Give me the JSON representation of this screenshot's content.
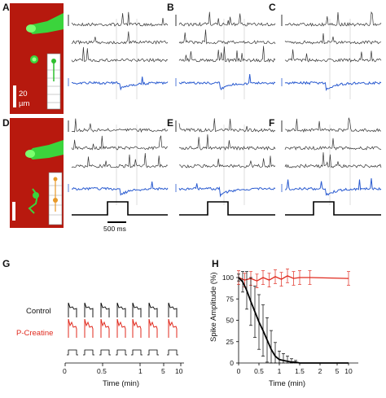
{
  "panels": {
    "A": "A",
    "B": "B",
    "C": "C",
    "D": "D",
    "E": "E",
    "F": "F",
    "G": "G",
    "H": "H"
  },
  "image_scale": {
    "value": "20",
    "unit": "µm"
  },
  "time_scale": {
    "label": "500 ms"
  },
  "colors": {
    "black_trace": "#333333",
    "blue_trace": "#2a5bd0",
    "red_trace": "#e02a1e",
    "micrograph_bg": "#c81e12",
    "cell_fill": "#39d23a"
  },
  "panel_g": {
    "rows": [
      "Control",
      "P-Creatine"
    ],
    "xlabel": "Time (min)",
    "ticks": [
      "0",
      "0.5",
      "1",
      "5",
      "10"
    ]
  },
  "chart_data": {
    "type": "line",
    "title": "",
    "xlabel": "Time (min)",
    "ylabel": "Spike Amplitude (%)",
    "xticks": [
      "0",
      "0.5",
      "1",
      "1.5",
      "2",
      "5",
      "10"
    ],
    "yticks": [
      0,
      25,
      50,
      75,
      100
    ],
    "ylim": [
      0,
      100
    ],
    "grid": false,
    "series": [
      {
        "name": "",
        "color": "#e02a1e",
        "x": [
          0,
          0.15,
          0.3,
          0.45,
          0.6,
          0.75,
          0.9,
          1.05,
          1.2,
          1.35,
          1.5,
          1.75,
          2.5
        ],
        "y": [
          100,
          97,
          99,
          96,
          100,
          97,
          101,
          98,
          102,
          99,
          100,
          100,
          99
        ],
        "err": [
          8,
          8,
          8,
          8,
          8,
          8,
          8,
          8,
          8,
          8,
          8,
          8,
          8
        ]
      },
      {
        "name": "",
        "color": "#000000",
        "x": [
          0,
          0.1,
          0.2,
          0.3,
          0.4,
          0.5,
          0.6,
          0.7,
          0.8,
          0.9,
          1.0,
          1.1,
          1.2,
          1.3,
          1.4,
          1.5,
          1.75,
          2.5
        ],
        "y": [
          100,
          95,
          85,
          72,
          60,
          48,
          38,
          27,
          16,
          8,
          4,
          3,
          2,
          1,
          1,
          0,
          0,
          0
        ],
        "err": [
          4,
          12,
          22,
          28,
          30,
          32,
          30,
          26,
          22,
          16,
          10,
          8,
          6,
          4,
          2,
          0,
          0,
          0
        ]
      }
    ]
  }
}
